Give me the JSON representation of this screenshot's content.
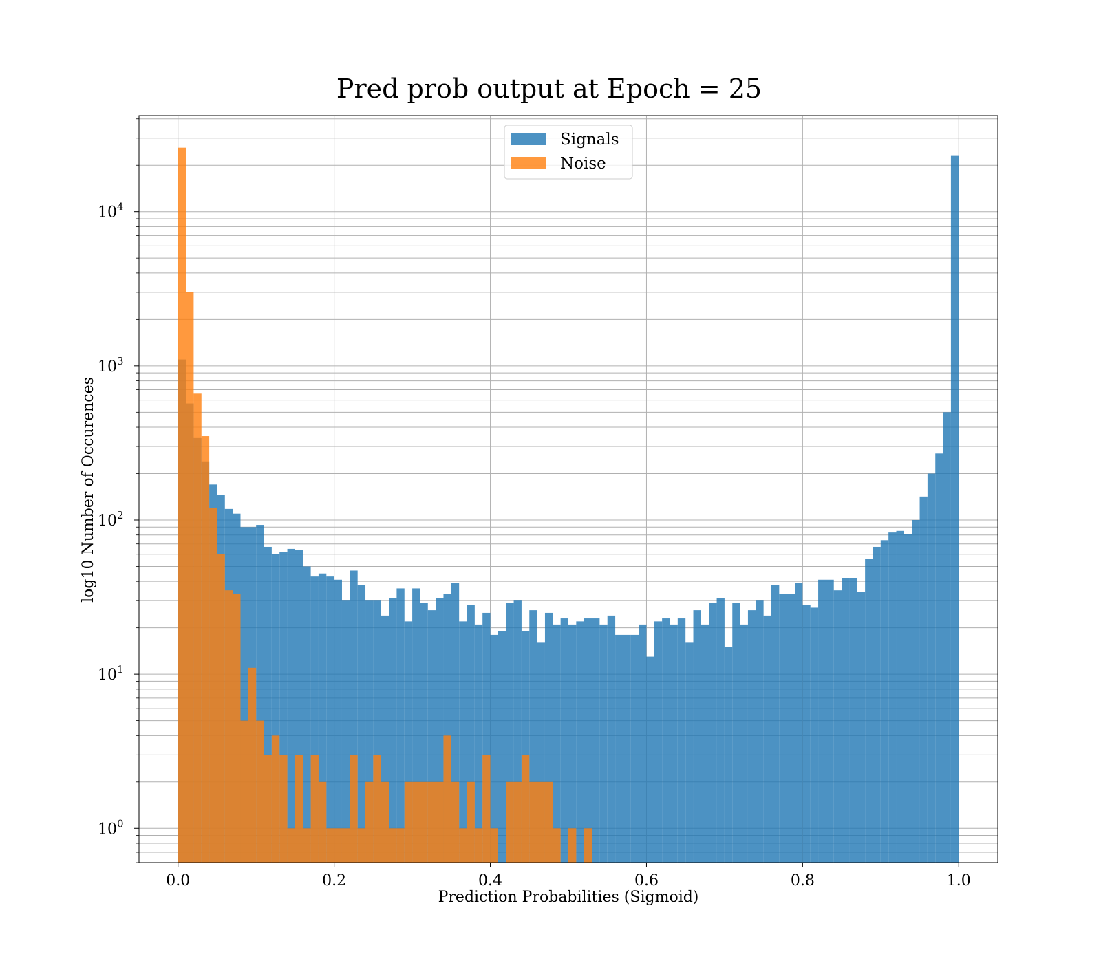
{
  "chart_data": {
    "type": "bar",
    "title": "Pred prob output at Epoch = 25",
    "xlabel": "Prediction Probabilities (Sigmoid)",
    "ylabel": "log10 Number of Occurences",
    "yscale": "log",
    "xlim": [
      -0.05,
      1.05
    ],
    "ylim": [
      0.6,
      42000
    ],
    "grid": true,
    "legend_position": "top-center",
    "x_ticks": [
      {
        "value": 0.0,
        "label": "0.0"
      },
      {
        "value": 0.2,
        "label": "0.2"
      },
      {
        "value": 0.4,
        "label": "0.4"
      },
      {
        "value": 0.6,
        "label": "0.6"
      },
      {
        "value": 0.8,
        "label": "0.8"
      },
      {
        "value": 1.0,
        "label": "1.0"
      }
    ],
    "y_ticks": [
      {
        "value": 1,
        "base": "10",
        "exp": "0"
      },
      {
        "value": 10,
        "base": "10",
        "exp": "1"
      },
      {
        "value": 100,
        "base": "10",
        "exp": "2"
      },
      {
        "value": 1000,
        "base": "10",
        "exp": "3"
      },
      {
        "value": 10000,
        "base": "10",
        "exp": "4"
      }
    ],
    "bin_width": 0.01,
    "series": [
      {
        "name": "Signals",
        "color": "#1f77b4",
        "opacity": 0.8,
        "values": [
          1100,
          570,
          340,
          240,
          170,
          145,
          118,
          110,
          90,
          90,
          93,
          67,
          60,
          62,
          65,
          64,
          50,
          43,
          45,
          43,
          41,
          30,
          47,
          38,
          30,
          30,
          24,
          31,
          36,
          22,
          36,
          29,
          26,
          31,
          33,
          39,
          22,
          28,
          21,
          25,
          18,
          19,
          29,
          30,
          19,
          26,
          16,
          25,
          21,
          23,
          21,
          22,
          23,
          23,
          21,
          24,
          18,
          18,
          18,
          21,
          13,
          22,
          23,
          21,
          23,
          16,
          26,
          21,
          29,
          31,
          15,
          29,
          21,
          26,
          30,
          24,
          38,
          33,
          33,
          39,
          28,
          27,
          41,
          41,
          35,
          42,
          42,
          34,
          56,
          67,
          74,
          83,
          85,
          81,
          100,
          142,
          200,
          270,
          500,
          23000
        ]
      },
      {
        "name": "Noise",
        "color": "#ff7f0e",
        "opacity": 0.8,
        "values": [
          26000,
          3000,
          660,
          350,
          120,
          60,
          35,
          33,
          5,
          11,
          5,
          3,
          4,
          3,
          1,
          3,
          1,
          3,
          2,
          1,
          1,
          1,
          3,
          1,
          2,
          3,
          2,
          1,
          1,
          2,
          2,
          2,
          2,
          2,
          4,
          2,
          1,
          2,
          1,
          3,
          1,
          0,
          2,
          2,
          3,
          2,
          2,
          2,
          1,
          0,
          1,
          0,
          1,
          0,
          0,
          0,
          0,
          0,
          0,
          0,
          0,
          0,
          0,
          0,
          0,
          0,
          0,
          0,
          0,
          0,
          0,
          0,
          0,
          0,
          0,
          0,
          0,
          0,
          0,
          0,
          0,
          0,
          0,
          0,
          0,
          0,
          0,
          0,
          0,
          0,
          0,
          0,
          0,
          0,
          0,
          0,
          0,
          0,
          0,
          0
        ]
      }
    ]
  }
}
